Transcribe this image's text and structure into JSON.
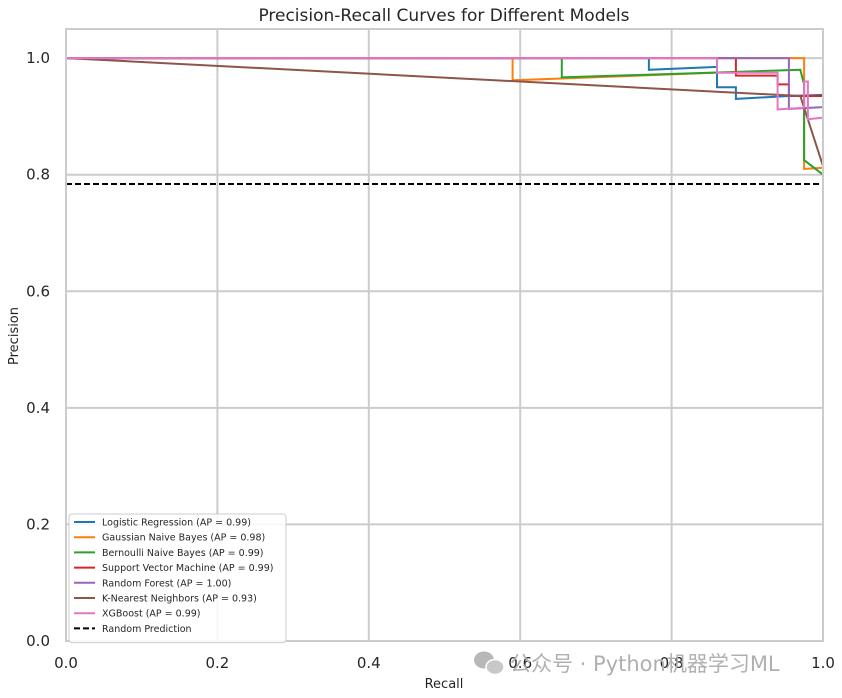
{
  "chart_data": {
    "type": "line",
    "title": "Precision-Recall Curves for Different Models",
    "xlabel": "Recall",
    "ylabel": "Precision",
    "xlim": [
      0.0,
      1.0
    ],
    "ylim": [
      0.0,
      1.05
    ],
    "xticks": [
      "0.0",
      "0.2",
      "0.4",
      "0.6",
      "0.8",
      "1.0"
    ],
    "yticks": [
      "0.0",
      "0.2",
      "0.4",
      "0.6",
      "0.8",
      "1.0"
    ],
    "grid": true,
    "legend_position": "lower-left",
    "series": [
      {
        "name": "Logistic Regression (AP = 0.99)",
        "color": "#1f77b4",
        "x": [
          0,
          0.77,
          0.77,
          0.86,
          0.86,
          0.885,
          0.885,
          0.955,
          0.955,
          1.0
        ],
        "y": [
          1.0,
          1.0,
          0.98,
          0.985,
          0.95,
          0.95,
          0.93,
          0.935,
          0.935,
          0.937
        ]
      },
      {
        "name": "Gaussian Naive Bayes (AP = 0.98)",
        "color": "#ff7f0e",
        "x": [
          0,
          0.59,
          0.59,
          0.86,
          0.86,
          0.975,
          0.975,
          1.0
        ],
        "y": [
          1.0,
          1.0,
          0.962,
          0.975,
          1.0,
          1.0,
          0.81,
          0.812
        ]
      },
      {
        "name": "Bernoulli Naive Bayes (AP = 0.99)",
        "color": "#2ca02c",
        "x": [
          0,
          0.655,
          0.655,
          0.97,
          0.975,
          0.975,
          1.0
        ],
        "y": [
          1.0,
          1.0,
          0.967,
          0.98,
          0.955,
          0.825,
          0.8
        ]
      },
      {
        "name": "Support Vector Machine (AP = 0.99)",
        "color": "#d62728",
        "x": [
          0,
          0.885,
          0.885,
          0.94,
          0.94,
          0.955,
          0.955,
          1.0
        ],
        "y": [
          1.0,
          1.0,
          0.97,
          0.97,
          0.955,
          0.955,
          0.935,
          0.935
        ]
      },
      {
        "name": "Random Forest (AP = 1.00)",
        "color": "#9467bd",
        "x": [
          0,
          0.955,
          0.955,
          1.0
        ],
        "y": [
          1.0,
          1.0,
          0.913,
          0.916
        ]
      },
      {
        "name": "K-Nearest Neighbors (AP = 0.93)",
        "color": "#8c564b",
        "x": [
          0,
          0.97,
          1.0
        ],
        "y": [
          1.0,
          0.935,
          0.815
        ]
      },
      {
        "name": "XGBoost (AP = 0.99)",
        "color": "#e377c2",
        "x": [
          0,
          0.86,
          0.86,
          0.94,
          0.94,
          0.975,
          0.975,
          0.98,
          0.98,
          1.0
        ],
        "y": [
          1.0,
          1.0,
          0.975,
          0.975,
          0.912,
          0.915,
          0.96,
          0.96,
          0.895,
          0.898
        ]
      },
      {
        "name": "Random Prediction",
        "color": "#000000",
        "dashed": true,
        "x": [
          0,
          1.0
        ],
        "y": [
          0.784,
          0.784
        ]
      }
    ]
  },
  "watermark": "公众号 · Python机器学习ML"
}
